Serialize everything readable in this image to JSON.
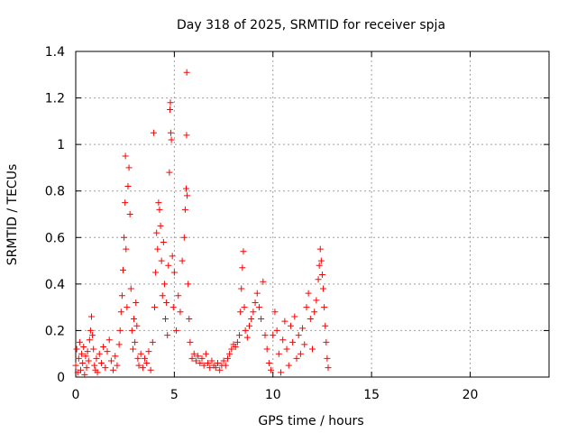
{
  "chart_data": {
    "type": "scatter",
    "title": "Day 318 of 2025, SRMTID for receiver spja",
    "xlabel": "GPS time / hours",
    "ylabel": "SRMTID / TECUs",
    "xlim": [
      0,
      24
    ],
    "ylim": [
      0,
      1.4
    ],
    "xticks": [
      0,
      5,
      10,
      15,
      20
    ],
    "xtick_labels": [
      "0",
      "5",
      "10",
      "15",
      "20"
    ],
    "yticks": [
      0,
      0.2,
      0.4,
      0.6,
      0.8,
      1,
      1.2,
      1.4
    ],
    "ytick_labels": [
      "0",
      "0.2",
      "0.4",
      "0.6",
      "0.8",
      "1",
      "1.2",
      "1.4"
    ],
    "grid": true,
    "marker": "plus",
    "marker_color": "#ff0000",
    "series": [
      {
        "name": "SRMTID",
        "points": [
          [
            0.0,
            0.05
          ],
          [
            0.05,
            0.12
          ],
          [
            0.1,
            0.02
          ],
          [
            0.15,
            0.08
          ],
          [
            0.2,
            0.15
          ],
          [
            0.25,
            0.03
          ],
          [
            0.3,
            0.1
          ],
          [
            0.35,
            0.06
          ],
          [
            0.4,
            0.13
          ],
          [
            0.45,
            0.01
          ],
          [
            0.5,
            0.09
          ],
          [
            0.55,
            0.04
          ],
          [
            0.6,
            0.11
          ],
          [
            0.65,
            0.07
          ],
          [
            0.7,
            0.16
          ],
          [
            0.75,
            0.2
          ],
          [
            0.8,
            0.26
          ],
          [
            0.85,
            0.18
          ],
          [
            0.9,
            0.12
          ],
          [
            0.95,
            0.05
          ],
          [
            1.0,
            0.03
          ],
          [
            1.05,
            0.08
          ],
          [
            1.1,
            0.02
          ],
          [
            1.2,
            0.1
          ],
          [
            1.3,
            0.06
          ],
          [
            1.4,
            0.13
          ],
          [
            1.5,
            0.04
          ],
          [
            1.6,
            0.11
          ],
          [
            1.7,
            0.16
          ],
          [
            1.8,
            0.07
          ],
          [
            1.9,
            0.03
          ],
          [
            2.0,
            0.09
          ],
          [
            2.1,
            0.05
          ],
          [
            2.2,
            0.14
          ],
          [
            2.25,
            0.2
          ],
          [
            2.3,
            0.28
          ],
          [
            2.35,
            0.35
          ],
          [
            2.4,
            0.46
          ],
          [
            2.45,
            0.6
          ],
          [
            2.5,
            0.75
          ],
          [
            2.52,
            0.95
          ],
          [
            2.55,
            0.55
          ],
          [
            2.6,
            0.3
          ],
          [
            2.65,
            0.82
          ],
          [
            2.7,
            0.9
          ],
          [
            2.75,
            0.7
          ],
          [
            2.8,
            0.38
          ],
          [
            2.85,
            0.2
          ],
          [
            2.9,
            0.12
          ],
          [
            2.95,
            0.25
          ],
          [
            3.0,
            0.15
          ],
          [
            3.05,
            0.32
          ],
          [
            3.1,
            0.22
          ],
          [
            3.15,
            0.08
          ],
          [
            3.2,
            0.05
          ],
          [
            3.3,
            0.1
          ],
          [
            3.4,
            0.04
          ],
          [
            3.5,
            0.08
          ],
          [
            3.6,
            0.06
          ],
          [
            3.7,
            0.11
          ],
          [
            3.8,
            0.03
          ],
          [
            3.9,
            0.15
          ],
          [
            3.95,
            1.05
          ],
          [
            4.0,
            0.3
          ],
          [
            4.05,
            0.45
          ],
          [
            4.1,
            0.62
          ],
          [
            4.15,
            0.55
          ],
          [
            4.2,
            0.75
          ],
          [
            4.25,
            0.72
          ],
          [
            4.3,
            0.65
          ],
          [
            4.35,
            0.5
          ],
          [
            4.4,
            0.35
          ],
          [
            4.45,
            0.58
          ],
          [
            4.5,
            0.4
          ],
          [
            4.55,
            0.25
          ],
          [
            4.6,
            0.32
          ],
          [
            4.65,
            0.18
          ],
          [
            4.7,
            0.48
          ],
          [
            4.75,
            0.88
          ],
          [
            4.78,
            1.15
          ],
          [
            4.8,
            1.18
          ],
          [
            4.82,
            1.05
          ],
          [
            4.85,
            1.02
          ],
          [
            4.9,
            0.52
          ],
          [
            4.95,
            0.3
          ],
          [
            5.0,
            0.45
          ],
          [
            5.1,
            0.2
          ],
          [
            5.2,
            0.35
          ],
          [
            5.3,
            0.28
          ],
          [
            5.4,
            0.5
          ],
          [
            5.5,
            0.6
          ],
          [
            5.55,
            0.72
          ],
          [
            5.6,
            0.81
          ],
          [
            5.62,
            1.04
          ],
          [
            5.63,
            1.31
          ],
          [
            5.65,
            0.78
          ],
          [
            5.7,
            0.4
          ],
          [
            5.75,
            0.25
          ],
          [
            5.8,
            0.15
          ],
          [
            5.9,
            0.08
          ],
          [
            6.0,
            0.1
          ],
          [
            6.1,
            0.07
          ],
          [
            6.2,
            0.09
          ],
          [
            6.3,
            0.06
          ],
          [
            6.4,
            0.08
          ],
          [
            6.5,
            0.05
          ],
          [
            6.6,
            0.1
          ],
          [
            6.7,
            0.06
          ],
          [
            6.8,
            0.04
          ],
          [
            6.9,
            0.07
          ],
          [
            7.0,
            0.05
          ],
          [
            7.1,
            0.04
          ],
          [
            7.2,
            0.06
          ],
          [
            7.3,
            0.03
          ],
          [
            7.4,
            0.05
          ],
          [
            7.5,
            0.07
          ],
          [
            7.6,
            0.05
          ],
          [
            7.7,
            0.08
          ],
          [
            7.8,
            0.1
          ],
          [
            7.9,
            0.12
          ],
          [
            8.0,
            0.14
          ],
          [
            8.1,
            0.13
          ],
          [
            8.2,
            0.15
          ],
          [
            8.3,
            0.18
          ],
          [
            8.35,
            0.28
          ],
          [
            8.4,
            0.38
          ],
          [
            8.45,
            0.47
          ],
          [
            8.5,
            0.54
          ],
          [
            8.55,
            0.3
          ],
          [
            8.6,
            0.2
          ],
          [
            8.7,
            0.17
          ],
          [
            8.8,
            0.22
          ],
          [
            8.9,
            0.25
          ],
          [
            9.0,
            0.28
          ],
          [
            9.1,
            0.32
          ],
          [
            9.2,
            0.36
          ],
          [
            9.3,
            0.3
          ],
          [
            9.4,
            0.25
          ],
          [
            9.5,
            0.41
          ],
          [
            9.6,
            0.18
          ],
          [
            9.7,
            0.12
          ],
          [
            9.8,
            0.06
          ],
          [
            9.9,
            0.03
          ],
          [
            10.0,
            0.18
          ],
          [
            10.1,
            0.28
          ],
          [
            10.2,
            0.2
          ],
          [
            10.3,
            0.1
          ],
          [
            10.4,
            0.02
          ],
          [
            10.5,
            0.16
          ],
          [
            10.6,
            0.24
          ],
          [
            10.7,
            0.12
          ],
          [
            10.8,
            0.05
          ],
          [
            10.9,
            0.22
          ],
          [
            11.0,
            0.15
          ],
          [
            11.1,
            0.26
          ],
          [
            11.2,
            0.08
          ],
          [
            11.3,
            0.18
          ],
          [
            11.4,
            0.1
          ],
          [
            11.5,
            0.21
          ],
          [
            11.6,
            0.14
          ],
          [
            11.7,
            0.3
          ],
          [
            11.8,
            0.36
          ],
          [
            11.9,
            0.25
          ],
          [
            12.0,
            0.12
          ],
          [
            12.1,
            0.28
          ],
          [
            12.2,
            0.33
          ],
          [
            12.3,
            0.42
          ],
          [
            12.35,
            0.48
          ],
          [
            12.4,
            0.55
          ],
          [
            12.45,
            0.5
          ],
          [
            12.5,
            0.44
          ],
          [
            12.55,
            0.38
          ],
          [
            12.6,
            0.3
          ],
          [
            12.65,
            0.22
          ],
          [
            12.7,
            0.15
          ],
          [
            12.75,
            0.08
          ],
          [
            12.8,
            0.04
          ]
        ]
      }
    ]
  }
}
